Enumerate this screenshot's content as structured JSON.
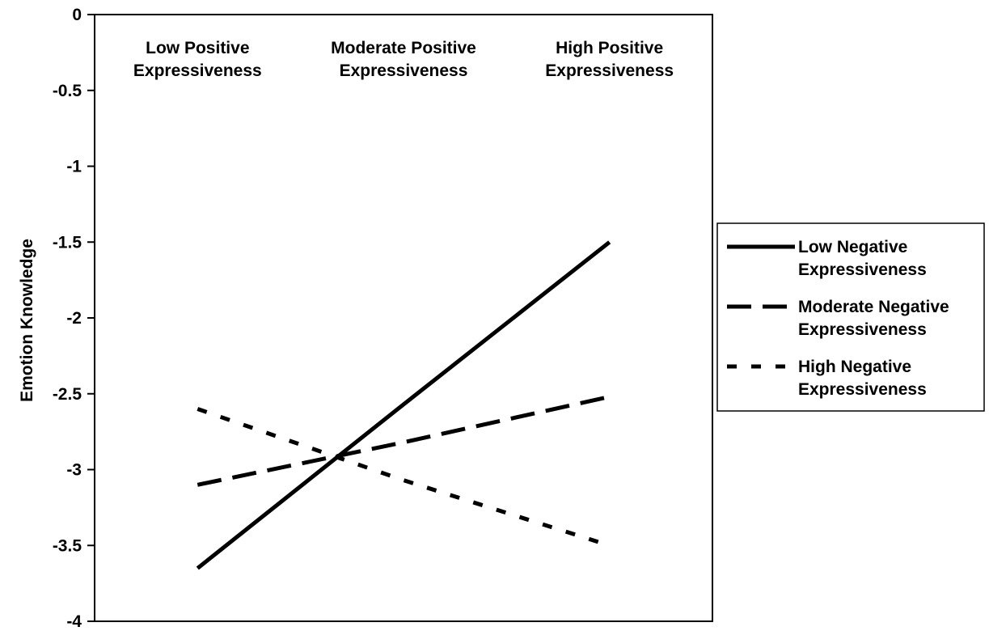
{
  "chart_data": {
    "type": "line",
    "title": "",
    "xlabel": "",
    "ylabel": "Emotion Knowledge",
    "ylim": [
      -4,
      0
    ],
    "yticks": [
      0,
      -0.5,
      -1,
      -1.5,
      -2,
      -2.5,
      -3,
      -3.5,
      -4
    ],
    "ytick_labels": [
      "0",
      "-0.5",
      "-1",
      "-1.5",
      "-2",
      "-2.5",
      "-3",
      "-3.5",
      "-4"
    ],
    "categories": [
      [
        "Low Positive",
        "Expressiveness"
      ],
      [
        "Moderate Positive",
        "Expressiveness"
      ],
      [
        "High Positive",
        "Expressiveness"
      ]
    ],
    "category_position": "top",
    "grid": false,
    "legend_position": "right",
    "series": [
      {
        "name": [
          "Low Negative",
          "Expressiveness"
        ],
        "style": "solid",
        "color": "#000000",
        "values": [
          -3.65,
          -2.57,
          -1.5
        ]
      },
      {
        "name": [
          "Moderate Negative",
          "Expressiveness"
        ],
        "style": "dashed",
        "color": "#000000",
        "values": [
          -3.1,
          -2.82,
          -2.52
        ]
      },
      {
        "name": [
          "High Negative",
          "Expressiveness"
        ],
        "style": "dotted",
        "color": "#000000",
        "values": [
          -2.6,
          -3.07,
          -3.5
        ]
      }
    ]
  }
}
